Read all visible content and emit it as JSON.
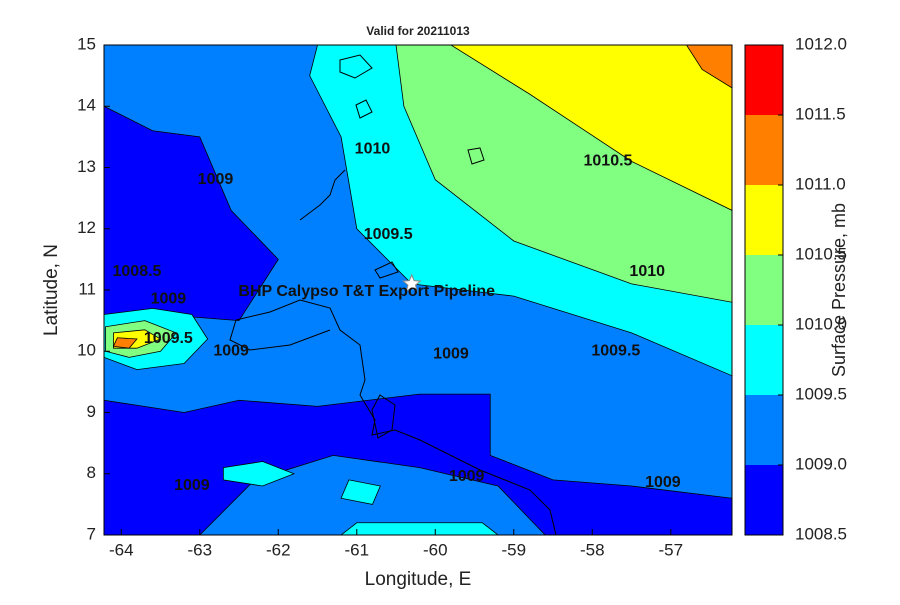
{
  "chart_data": {
    "type": "contour",
    "title": "Valid for 20211013",
    "x_label": "Longitude, E",
    "y_label": "Latitude, N",
    "colorbar_label": "Surface Pressure, mb",
    "xlim": [
      -64.22,
      -56.22
    ],
    "ylim": [
      7,
      15
    ],
    "xticks": [
      -64,
      -63,
      -62,
      -61,
      -60,
      -59,
      -58,
      -57
    ],
    "yticks": [
      7,
      8,
      9,
      10,
      11,
      12,
      13,
      14,
      15
    ],
    "levels": [
      {
        "value": 1008.5,
        "label": "1008.5"
      },
      {
        "value": 1009,
        "label": "1009.0"
      },
      {
        "value": 1009.5,
        "label": "1009.5"
      },
      {
        "value": 1010,
        "label": "1010.0"
      },
      {
        "value": 1010.5,
        "label": "1010.5"
      },
      {
        "value": 1011,
        "label": "1011.0"
      },
      {
        "value": 1011.5,
        "label": "1011.5"
      },
      {
        "value": 1012,
        "label": "1012.0"
      }
    ],
    "colors": [
      "#0000ff",
      "#0080ff",
      "#00ffff",
      "#80ff80",
      "#ffff00",
      "#ff8000",
      "#ff0000"
    ],
    "regions": [
      {
        "level": 1009,
        "lon": [
          -64.22,
          -56.22,
          -56.22,
          -57.5,
          -58.5,
          -59.3,
          -59.3,
          -60.2,
          -61.5,
          -62.5,
          -63.2,
          -64.22,
          -64.22,
          -63.5,
          -62.5,
          -62,
          -62.6,
          -63,
          -63.6,
          -64.22
        ],
        "lat": [
          15,
          15,
          7.6,
          7.8,
          7.9,
          8.3,
          9.3,
          9.3,
          9.1,
          9.2,
          9,
          9.2,
          10.2,
          10.6,
          10.5,
          11.5,
          12.3,
          13.5,
          13.6,
          14
        ]
      },
      {
        "level": 1009,
        "lon": [
          -63,
          -62.3,
          -61.3,
          -60.2,
          -59.2,
          -58.6
        ],
        "lat": [
          7,
          7.9,
          8.3,
          8.1,
          7.8,
          7
        ]
      },
      {
        "level": 1009.5,
        "lon": [
          -61.5,
          -56.22,
          -56.22,
          -57.5,
          -59,
          -60.3,
          -61,
          -61.2,
          -61.6
        ],
        "lat": [
          15,
          15,
          9.6,
          10.3,
          10.9,
          11.1,
          12,
          13.5,
          14.5
        ]
      },
      {
        "level": 1009.5,
        "lon": [
          -62.7,
          -62.2,
          -61.8,
          -62.2,
          -62.7
        ],
        "lat": [
          8.1,
          8.2,
          8,
          7.8,
          7.9
        ]
      },
      {
        "level": 1009.5,
        "lon": [
          -61.1,
          -60.7,
          -60.8,
          -61.2
        ],
        "lat": [
          7.9,
          7.8,
          7.5,
          7.6
        ]
      },
      {
        "level": 1009.5,
        "lon": [
          -61.2,
          -59.2,
          -59.4,
          -61
        ],
        "lat": [
          7,
          7,
          7.2,
          7.2
        ]
      },
      {
        "level": 1009.5,
        "lon": [
          -64.22,
          -63.6,
          -63.1,
          -62.9,
          -63.2,
          -63.8,
          -64.22
        ],
        "lat": [
          10.6,
          10.7,
          10.6,
          10.2,
          9.8,
          9.7,
          9.9
        ]
      },
      {
        "level": 1010,
        "lon": [
          -60.5,
          -56.22,
          -56.22,
          -57.5,
          -59,
          -60,
          -60.4
        ],
        "lat": [
          15,
          15,
          10.8,
          11.1,
          11.8,
          12.8,
          14
        ]
      },
      {
        "level": 1010,
        "lon": [
          -64.2,
          -63.7,
          -63.3,
          -63.5,
          -63.9,
          -64.2
        ],
        "lat": [
          10.4,
          10.5,
          10.3,
          10,
          9.9,
          10
        ]
      },
      {
        "level": 1010.5,
        "lon": [
          -59.8,
          -56.22,
          -56.22,
          -57.5,
          -58.8
        ],
        "lat": [
          15,
          15,
          12.3,
          13.1,
          14.2
        ]
      },
      {
        "level": 1010.5,
        "lon": [
          -64.1,
          -63.7,
          -63.5,
          -63.8,
          -64.1
        ],
        "lat": [
          10.3,
          10.35,
          10.2,
          10.05,
          10.05
        ]
      },
      {
        "level": 1011,
        "lon": [
          -56.8,
          -56.22,
          -56.22,
          -56.6
        ],
        "lat": [
          15,
          15,
          14.3,
          14.6
        ]
      },
      {
        "level": 1011,
        "lon": [
          -64.05,
          -63.8,
          -63.9,
          -64.1
        ],
        "lat": [
          10.22,
          10.2,
          10.05,
          10.08
        ]
      }
    ],
    "contour_labels": [
      {
        "value": 1010,
        "lon": -60.8,
        "lat": 13.3
      },
      {
        "value": 1010.5,
        "lon": -57.8,
        "lat": 13.1
      },
      {
        "value": 1009.5,
        "lon": -60.6,
        "lat": 11.9
      },
      {
        "value": 1010,
        "lon": -57.3,
        "lat": 11.3
      },
      {
        "value": 1009.5,
        "lon": -57.7,
        "lat": 10.0
      },
      {
        "value": 1009,
        "lon": -59.8,
        "lat": 9.95
      },
      {
        "value": 1009,
        "lon": -59.6,
        "lat": 7.95
      },
      {
        "value": 1009,
        "lon": -57.1,
        "lat": 7.85
      },
      {
        "value": 1009,
        "lon": -63.1,
        "lat": 7.8
      },
      {
        "value": 1009,
        "lon": -62.8,
        "lat": 12.8
      },
      {
        "value": 1008.5,
        "lon": -63.8,
        "lat": 11.3
      },
      {
        "value": 1009,
        "lon": -63.4,
        "lat": 10.85
      },
      {
        "value": 1009.5,
        "lon": -63.4,
        "lat": 10.2
      },
      {
        "value": 1009,
        "lon": -62.6,
        "lat": 10.0
      }
    ],
    "annotation": "BHP Calypso T&T Export Pipeline",
    "marker": {
      "lon": -60.3,
      "lat": 11.1
    }
  }
}
